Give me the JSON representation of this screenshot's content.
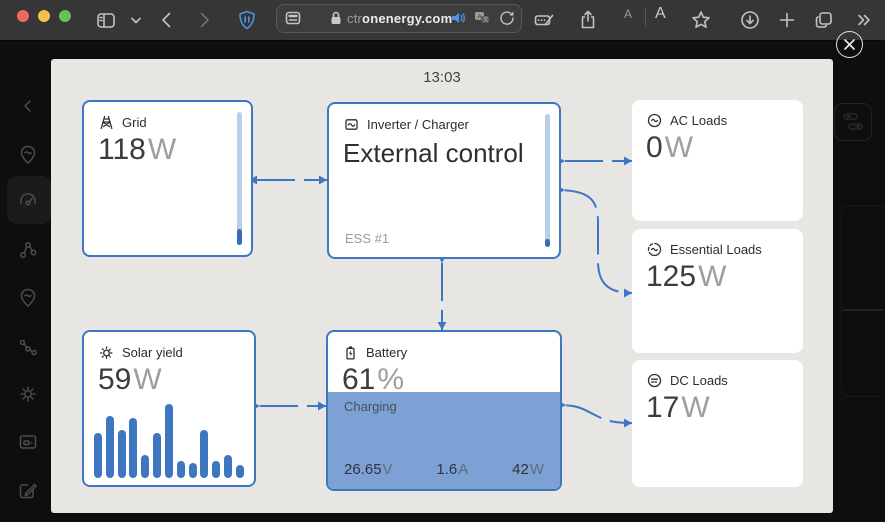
{
  "browser": {
    "traffic_lights": [
      "#ee6a5f",
      "#f5bf4f",
      "#61c554"
    ],
    "url_prefix": "ctr",
    "url_domain": "onenergy.com",
    "font_small": "A",
    "font_large": "A"
  },
  "overlay": {
    "time": "13:03"
  },
  "tiles": {
    "grid": {
      "label": "Grid",
      "value": "118",
      "unit": "W"
    },
    "inverter": {
      "label": "Inverter / Charger",
      "status": "External control",
      "subtitle": "ESS #1"
    },
    "ac_loads": {
      "label": "AC Loads",
      "value": "0",
      "unit": "W"
    },
    "essential_loads": {
      "label": "Essential Loads",
      "value": "125",
      "unit": "W"
    },
    "dc_loads": {
      "label": "DC Loads",
      "value": "17",
      "unit": "W"
    },
    "solar": {
      "label": "Solar yield",
      "value": "59",
      "unit": "W",
      "bars": [
        45,
        62,
        48,
        60,
        23,
        45,
        74,
        17,
        15,
        48,
        17,
        23,
        13
      ]
    },
    "battery": {
      "label": "Battery",
      "soc": "61",
      "soc_unit": "%",
      "state": "Charging",
      "fill_percent": 62,
      "voltage": "26.65",
      "voltage_unit": "V",
      "current": "1.6",
      "current_unit": "A",
      "power": "42",
      "power_unit": "W"
    }
  },
  "colors": {
    "accent": "#3f76c2",
    "battery_fill": "#7da1d4",
    "gauge_track": "#b9cfe9",
    "gauge_value": "#3a6cb5",
    "modal_bg": "#e8e6e3",
    "page_bg": "#0e0e0e",
    "toolbar_bg": "#363636"
  }
}
